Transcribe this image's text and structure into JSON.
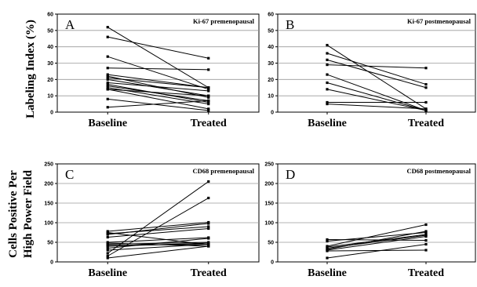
{
  "figure": {
    "ylabel_top": "Labeling Index (%)",
    "ylabel_bottom_line1": "Cells Positive Per",
    "ylabel_bottom_line2": "High Power Field"
  },
  "chart_data": [
    {
      "type": "line",
      "letter": "A",
      "title": "Ki-67 premenopausal",
      "categories": [
        "Baseline",
        "Treated"
      ],
      "ylim": [
        0,
        60
      ],
      "yticks": [
        0,
        10,
        20,
        30,
        40,
        50,
        60
      ],
      "grid": true,
      "pairs": [
        [
          52,
          15
        ],
        [
          46,
          33
        ],
        [
          34,
          14
        ],
        [
          27,
          26
        ],
        [
          23,
          15
        ],
        [
          22,
          9
        ],
        [
          21,
          15
        ],
        [
          20,
          10
        ],
        [
          18,
          13
        ],
        [
          17,
          6
        ],
        [
          16,
          7
        ],
        [
          15,
          5
        ],
        [
          14,
          10
        ],
        [
          14,
          2
        ],
        [
          8,
          1
        ],
        [
          3,
          7
        ]
      ]
    },
    {
      "type": "line",
      "letter": "B",
      "title": "Ki-67 postmenopausal",
      "categories": [
        "Baseline",
        "Treated"
      ],
      "ylim": [
        0,
        60
      ],
      "yticks": [
        0,
        10,
        20,
        30,
        40,
        50,
        60
      ],
      "grid": true,
      "pairs": [
        [
          41,
          2
        ],
        [
          36,
          17
        ],
        [
          32,
          15
        ],
        [
          29,
          27
        ],
        [
          23,
          1
        ],
        [
          18,
          1
        ],
        [
          14,
          1
        ],
        [
          6,
          6
        ],
        [
          5,
          2
        ]
      ]
    },
    {
      "type": "line",
      "letter": "C",
      "title": "CD68  premenopausal",
      "categories": [
        "Baseline",
        "Treated"
      ],
      "ylim": [
        0,
        250
      ],
      "yticks": [
        0,
        50,
        100,
        150,
        200,
        250
      ],
      "grid": true,
      "pairs": [
        [
          78,
          101
        ],
        [
          75,
          44
        ],
        [
          72,
          90
        ],
        [
          70,
          98
        ],
        [
          63,
          85
        ],
        [
          50,
          62
        ],
        [
          48,
          40
        ],
        [
          45,
          50
        ],
        [
          42,
          45
        ],
        [
          40,
          48
        ],
        [
          35,
          60
        ],
        [
          30,
          45
        ],
        [
          22,
          205
        ],
        [
          15,
          163
        ],
        [
          10,
          40
        ]
      ]
    },
    {
      "type": "line",
      "letter": "D",
      "title": "CD68 postmenopausal",
      "categories": [
        "Baseline",
        "Treated"
      ],
      "ylim": [
        0,
        250
      ],
      "yticks": [
        0,
        50,
        100,
        150,
        200,
        250
      ],
      "grid": true,
      "pairs": [
        [
          57,
          55
        ],
        [
          53,
          75
        ],
        [
          40,
          95
        ],
        [
          38,
          70
        ],
        [
          35,
          68
        ],
        [
          32,
          78
        ],
        [
          30,
          65
        ],
        [
          28,
          30
        ],
        [
          10,
          45
        ]
      ]
    }
  ]
}
